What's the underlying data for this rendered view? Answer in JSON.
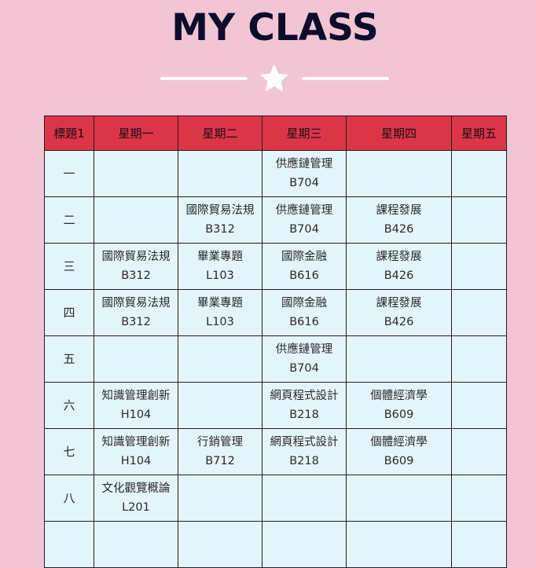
{
  "page": {
    "title": "MY CLASS",
    "divider_icon": "star-icon",
    "colors": {
      "background": "#f2c5d4",
      "header": "#dd3548",
      "cell": "#e3f5fb",
      "title": "#0b0d2b",
      "divider": "#ffffff"
    }
  },
  "table": {
    "headers": [
      "標題1",
      "星期一",
      "星期二",
      "星期三",
      "星期四",
      "星期五"
    ],
    "rows": [
      {
        "label": "一",
        "cells": [
          {
            "course": "",
            "room": ""
          },
          {
            "course": "",
            "room": ""
          },
          {
            "course": "供應鏈管理",
            "room": "B704"
          },
          {
            "course": "",
            "room": ""
          },
          {
            "course": "",
            "room": ""
          }
        ]
      },
      {
        "label": "二",
        "cells": [
          {
            "course": "",
            "room": ""
          },
          {
            "course": "國際貿易法規",
            "room": "B312"
          },
          {
            "course": "供應鏈管理",
            "room": "B704"
          },
          {
            "course": "課程發展",
            "room": "B426"
          },
          {
            "course": "",
            "room": ""
          }
        ]
      },
      {
        "label": "三",
        "cells": [
          {
            "course": "國際貿易法規",
            "room": "B312"
          },
          {
            "course": "畢業專題",
            "room": "L103"
          },
          {
            "course": "國際金融",
            "room": "B616"
          },
          {
            "course": "課程發展",
            "room": "B426"
          },
          {
            "course": "",
            "room": ""
          }
        ]
      },
      {
        "label": "四",
        "cells": [
          {
            "course": "國際貿易法規",
            "room": "B312"
          },
          {
            "course": "畢業專題",
            "room": "L103"
          },
          {
            "course": "國際金融",
            "room": "B616"
          },
          {
            "course": "課程發展",
            "room": "B426"
          },
          {
            "course": "",
            "room": ""
          }
        ]
      },
      {
        "label": "五",
        "cells": [
          {
            "course": "",
            "room": ""
          },
          {
            "course": "",
            "room": ""
          },
          {
            "course": "供應鏈管理",
            "room": "B704"
          },
          {
            "course": "",
            "room": ""
          },
          {
            "course": "",
            "room": ""
          }
        ]
      },
      {
        "label": "六",
        "cells": [
          {
            "course": "知識管理創新",
            "room": "H104"
          },
          {
            "course": "",
            "room": ""
          },
          {
            "course": "網頁程式設計",
            "room": "B218"
          },
          {
            "course": "個體經濟學",
            "room": "B609"
          },
          {
            "course": "",
            "room": ""
          }
        ]
      },
      {
        "label": "七",
        "cells": [
          {
            "course": "知識管理創新",
            "room": "H104"
          },
          {
            "course": "行銷管理",
            "room": "B712"
          },
          {
            "course": "網頁程式設計",
            "room": "B218"
          },
          {
            "course": "個體經濟學",
            "room": "B609"
          },
          {
            "course": "",
            "room": ""
          }
        ]
      },
      {
        "label": "八",
        "cells": [
          {
            "course": "文化觀覽概論",
            "room": "L201"
          },
          {
            "course": "",
            "room": ""
          },
          {
            "course": "",
            "room": ""
          },
          {
            "course": "",
            "room": ""
          },
          {
            "course": "",
            "room": ""
          }
        ]
      },
      {
        "label": "",
        "cells": [
          {
            "course": "",
            "room": ""
          },
          {
            "course": "",
            "room": ""
          },
          {
            "course": "",
            "room": ""
          },
          {
            "course": "",
            "room": ""
          },
          {
            "course": "",
            "room": ""
          }
        ]
      }
    ]
  }
}
